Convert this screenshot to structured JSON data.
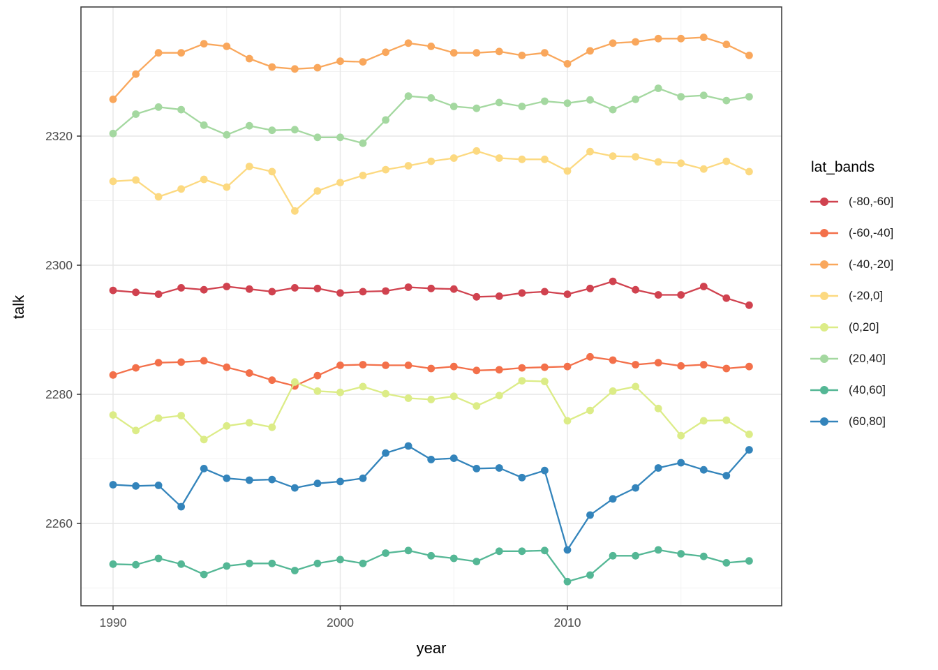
{
  "axes": {
    "x_label": "year",
    "y_label": "talk",
    "x_tick_labels": [
      "1990",
      "2000",
      "2010"
    ],
    "y_tick_labels": [
      "2260",
      "2280",
      "2300",
      "2320"
    ]
  },
  "legend": {
    "title": "lat_bands",
    "items": [
      {
        "label": "(-80,-60]",
        "color": "#d0424f"
      },
      {
        "label": "(-60,-40]",
        "color": "#f3704a"
      },
      {
        "label": "(-40,-20]",
        "color": "#f9a75c"
      },
      {
        "label": "(-20,0]",
        "color": "#fcd980"
      },
      {
        "label": "(0,20]",
        "color": "#dcec87"
      },
      {
        "label": "(20,40]",
        "color": "#a4d8a0"
      },
      {
        "label": "(40,60]",
        "color": "#54b795"
      },
      {
        "label": "(60,80]",
        "color": "#3384bb"
      }
    ]
  },
  "chart_data": {
    "type": "line",
    "title": "",
    "xlabel": "year",
    "ylabel": "talk",
    "legend_title": "lat_bands",
    "legend_position": "right",
    "grid": true,
    "x": [
      1990,
      1991,
      1992,
      1993,
      1994,
      1995,
      1996,
      1997,
      1998,
      1999,
      2000,
      2001,
      2002,
      2003,
      2004,
      2005,
      2006,
      2007,
      2008,
      2009,
      2010,
      2011,
      2012,
      2013,
      2014,
      2015,
      2016,
      2017,
      2018
    ],
    "xlim": [
      1988.6,
      2019.4
    ],
    "ylim": [
      2247,
      2340
    ],
    "x_major_ticks": [
      1990,
      2000,
      2010
    ],
    "x_minor_ticks": [
      1995,
      2005,
      2015
    ],
    "y_major_ticks": [
      2260,
      2280,
      2300,
      2320
    ],
    "y_minor_ticks": [
      2250,
      2270,
      2290,
      2310,
      2330
    ],
    "style": {
      "panel_border": "#333333",
      "grid_major": "#e6e6e6",
      "grid_minor": "#f2f2f2",
      "tick_label_color": "#4d4d4d",
      "tick_mark_color": "#333333"
    },
    "series": [
      {
        "name": "(-80,-60]",
        "color": "#d0424f",
        "values": [
          2296.1,
          2295.8,
          2295.5,
          2296.5,
          2296.2,
          2296.7,
          2296.3,
          2295.9,
          2296.5,
          2296.4,
          2295.7,
          2295.9,
          2296.0,
          2296.6,
          2296.4,
          2296.3,
          2295.1,
          2295.2,
          2295.7,
          2295.9,
          2295.5,
          2296.4,
          2297.5,
          2296.2,
          2295.4,
          2295.4,
          2296.7,
          2294.9,
          2293.8
        ]
      },
      {
        "name": "(-60,-40]",
        "color": "#f3704a",
        "values": [
          2283.0,
          2284.1,
          2284.9,
          2285.0,
          2285.2,
          2284.2,
          2283.3,
          2282.2,
          2281.3,
          2282.9,
          2284.5,
          2284.6,
          2284.5,
          2284.5,
          2284.0,
          2284.3,
          2283.7,
          2283.8,
          2284.1,
          2284.2,
          2284.3,
          2285.8,
          2285.3,
          2284.6,
          2284.9,
          2284.4,
          2284.6,
          2284.0,
          2284.3
        ]
      },
      {
        "name": "(-40,-20]",
        "color": "#f9a75c",
        "values": [
          2325.7,
          2329.6,
          2332.9,
          2332.9,
          2334.3,
          2333.9,
          2332.0,
          2330.7,
          2330.4,
          2330.6,
          2331.6,
          2331.5,
          2333.0,
          2334.4,
          2333.9,
          2332.9,
          2332.9,
          2333.1,
          2332.5,
          2332.9,
          2331.2,
          2333.2,
          2334.4,
          2334.6,
          2335.1,
          2335.1,
          2335.3,
          2334.2,
          2332.5
        ]
      },
      {
        "name": "(-20,0]",
        "color": "#fcd980",
        "values": [
          2313.0,
          2313.2,
          2310.6,
          2311.8,
          2313.3,
          2312.1,
          2315.3,
          2314.5,
          2308.4,
          2311.5,
          2312.8,
          2313.9,
          2314.8,
          2315.4,
          2316.1,
          2316.6,
          2317.7,
          2316.6,
          2316.4,
          2316.4,
          2314.6,
          2317.6,
          2316.9,
          2316.8,
          2316.0,
          2315.8,
          2314.9,
          2316.1,
          2314.5
        ]
      },
      {
        "name": "(0,20]",
        "color": "#dcec87",
        "values": [
          2276.8,
          2274.4,
          2276.3,
          2276.7,
          2273.0,
          2275.1,
          2275.6,
          2274.9,
          2281.9,
          2280.5,
          2280.3,
          2281.2,
          2280.1,
          2279.4,
          2279.2,
          2279.7,
          2278.2,
          2279.8,
          2282.1,
          2282.0,
          2275.9,
          2277.5,
          2280.5,
          2281.2,
          2277.8,
          2273.6,
          2275.9,
          2276.0,
          2273.8
        ]
      },
      {
        "name": "(20,40]",
        "color": "#a4d8a0",
        "values": [
          2320.4,
          2323.4,
          2324.5,
          2324.1,
          2321.7,
          2320.2,
          2321.6,
          2320.9,
          2321.0,
          2319.8,
          2319.8,
          2318.9,
          2322.5,
          2326.2,
          2325.9,
          2324.6,
          2324.3,
          2325.2,
          2324.6,
          2325.4,
          2325.1,
          2325.6,
          2324.1,
          2325.7,
          2327.4,
          2326.1,
          2326.3,
          2325.5,
          2326.1
        ]
      },
      {
        "name": "(40,60]",
        "color": "#54b795",
        "values": [
          2253.7,
          2253.6,
          2254.6,
          2253.7,
          2252.1,
          2253.4,
          2253.8,
          2253.8,
          2252.7,
          2253.8,
          2254.4,
          2253.8,
          2255.4,
          2255.8,
          2255.0,
          2254.6,
          2254.1,
          2255.7,
          2255.7,
          2255.8,
          2251.0,
          2252.0,
          2255.0,
          2255.0,
          2255.9,
          2255.3,
          2254.9,
          2253.9,
          2254.2
        ]
      },
      {
        "name": "(60,80]",
        "color": "#3384bb",
        "values": [
          2266.0,
          2265.8,
          2265.9,
          2262.6,
          2268.5,
          2267.0,
          2266.7,
          2266.8,
          2265.5,
          2266.2,
          2266.5,
          2267.0,
          2270.9,
          2272.0,
          2269.9,
          2270.1,
          2268.5,
          2268.6,
          2267.1,
          2268.2,
          2255.9,
          2261.3,
          2263.8,
          2265.5,
          2268.6,
          2269.4,
          2268.3,
          2267.4,
          2271.4
        ]
      }
    ]
  }
}
